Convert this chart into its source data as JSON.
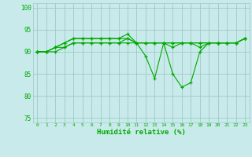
{
  "xlabel": "Humidité relative (%)",
  "background_color": "#c8eaea",
  "grid_color": "#a0c8c8",
  "line_color": "#00aa00",
  "xlim": [
    -0.5,
    23.5
  ],
  "ylim": [
    74,
    101
  ],
  "yticks": [
    75,
    80,
    85,
    90,
    95,
    100
  ],
  "xticks": [
    0,
    1,
    2,
    3,
    4,
    5,
    6,
    7,
    8,
    9,
    10,
    11,
    12,
    13,
    14,
    15,
    16,
    17,
    18,
    19,
    20,
    21,
    22,
    23
  ],
  "series": [
    [
      90,
      90,
      91,
      92,
      93,
      93,
      93,
      93,
      93,
      93,
      94,
      92,
      89,
      84,
      92,
      85,
      82,
      83,
      90,
      92,
      92,
      92,
      92,
      93
    ],
    [
      90,
      90,
      91,
      92,
      93,
      93,
      93,
      93,
      93,
      93,
      93,
      92,
      92,
      92,
      92,
      92,
      92,
      92,
      92,
      92,
      92,
      92,
      92,
      93
    ],
    [
      90,
      90,
      91,
      91,
      92,
      92,
      92,
      92,
      92,
      92,
      93,
      92,
      92,
      92,
      92,
      92,
      92,
      92,
      92,
      92,
      92,
      92,
      92,
      93
    ],
    [
      90,
      90,
      90,
      91,
      92,
      92,
      92,
      92,
      92,
      92,
      92,
      92,
      92,
      92,
      92,
      91,
      92,
      92,
      91,
      92,
      92,
      92,
      92,
      93
    ]
  ]
}
